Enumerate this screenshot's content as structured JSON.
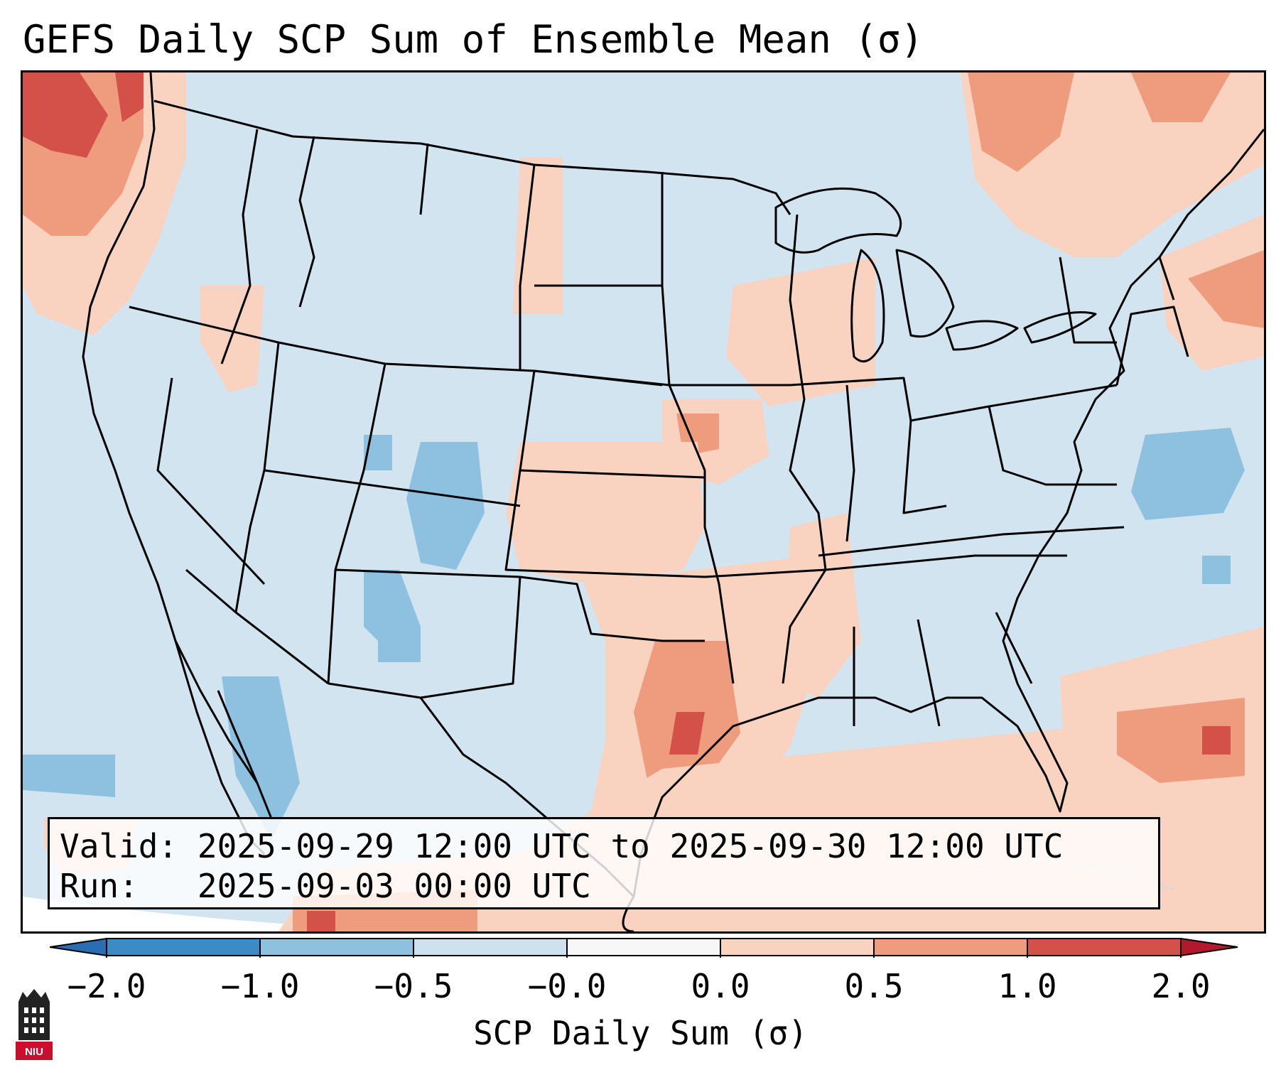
{
  "title": "GEFS Daily SCP Sum of Ensemble Mean (σ)",
  "info": {
    "valid_label": "Valid:",
    "valid_value": "2025-09-29 12:00 UTC to 2025-09-30 12:00 UTC",
    "run_label": "Run:",
    "run_value": "2025-09-03 00:00 UTC"
  },
  "colorbar": {
    "label": "SCP Daily Sum (σ)",
    "ticks": [
      "−2.0",
      "−1.0",
      "−0.5",
      "−0.0",
      "0.0",
      "0.5",
      "1.0",
      "2.0"
    ],
    "colors": [
      "#3d8bc4",
      "#8ec0df",
      "#cde1ef",
      "#f7f7f7",
      "#f9d3c0",
      "#ef9b7d",
      "#d4514a"
    ],
    "extend_low_color": "#2a6eb1",
    "extend_high_color": "#b4182d",
    "extend": "both"
  },
  "map": {
    "background_color": "#d1e4f0",
    "line_color": "#000000",
    "projection": "Lambert conformal, CONUS domain"
  },
  "logo": {
    "text": "NIU",
    "color": "#c8102e"
  }
}
